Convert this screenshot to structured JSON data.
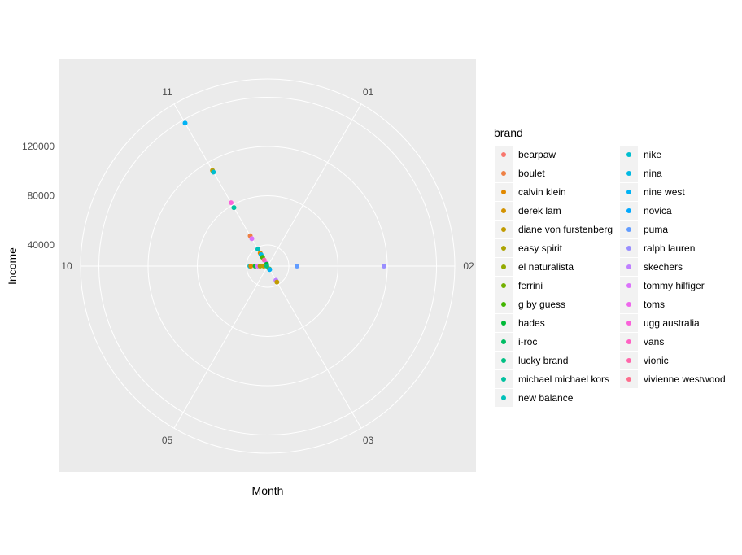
{
  "chart_data": {
    "type": "scatter",
    "coord": "polar",
    "xlabel": "Month",
    "ylabel": "Income",
    "theta_categories": [
      "01",
      "02",
      "03",
      "05",
      "10",
      "11"
    ],
    "r_ticks": [
      40000,
      80000,
      120000
    ],
    "r_tick_labels": [
      "40000",
      "80000",
      "120000"
    ],
    "r_range": [
      22800,
      160000
    ],
    "grid": true,
    "legend": {
      "title": "brand",
      "placement": "right",
      "entries": [
        "bearpaw",
        "boulet",
        "calvin klein",
        "derek lam",
        "diane von furstenberg",
        "easy spirit",
        "el naturalista",
        "ferrini",
        "g by guess",
        "hades",
        "i-roc",
        "lucky brand",
        "michael michael kors",
        "new balance",
        "nike",
        "nina",
        "nine west",
        "novica",
        "puma",
        "ralph lauren",
        "skechers",
        "tommy hilfiger",
        "toms",
        "ugg australia",
        "vans",
        "vionic",
        "vivienne westwood"
      ]
    },
    "points": [
      {
        "month": "11",
        "income": 157000,
        "brand": "nine west"
      },
      {
        "month": "11",
        "income": 112500,
        "brand": "diane von furstenberg"
      },
      {
        "month": "11",
        "income": 111000,
        "brand": "nike"
      },
      {
        "month": "11",
        "income": 82300,
        "brand": "ugg australia"
      },
      {
        "month": "11",
        "income": 77700,
        "brand": "michael michael kors"
      },
      {
        "month": "11",
        "income": 51200,
        "brand": "boulet"
      },
      {
        "month": "11",
        "income": 48600,
        "brand": "tommy hilfiger"
      },
      {
        "month": "11",
        "income": 38700,
        "brand": "new balance"
      },
      {
        "month": "11",
        "income": 35000,
        "brand": "calvin klein"
      },
      {
        "month": "11",
        "income": 33500,
        "brand": "nina"
      },
      {
        "month": "11",
        "income": 31000,
        "brand": "g by guess"
      },
      {
        "month": "11",
        "income": 28500,
        "brand": "vionic"
      },
      {
        "month": "11",
        "income": 25500,
        "brand": "toms"
      },
      {
        "month": "11",
        "income": 24500,
        "brand": "hades"
      },
      {
        "month": "10",
        "income": 37300,
        "brand": "nike"
      },
      {
        "month": "10",
        "income": 36500,
        "brand": "calvin klein"
      },
      {
        "month": "10",
        "income": 33000,
        "brand": "hades"
      },
      {
        "month": "10",
        "income": 31000,
        "brand": "tommy hilfiger"
      },
      {
        "month": "10",
        "income": 29000,
        "brand": "easy spirit"
      },
      {
        "month": "10",
        "income": 26000,
        "brand": "diane von furstenberg"
      },
      {
        "month": "10",
        "income": 23500,
        "brand": "lucky brand"
      },
      {
        "month": "02",
        "income": 46600,
        "brand": "puma"
      },
      {
        "month": "02",
        "income": 117300,
        "brand": "ralph lauren"
      },
      {
        "month": "03",
        "income": 25500,
        "brand": "ferrini"
      },
      {
        "month": "03",
        "income": 26000,
        "brand": "nine west"
      },
      {
        "month": "03",
        "income": 36200,
        "brand": "skechers"
      },
      {
        "month": "03",
        "income": 37800,
        "brand": "diane von furstenberg"
      }
    ]
  }
}
